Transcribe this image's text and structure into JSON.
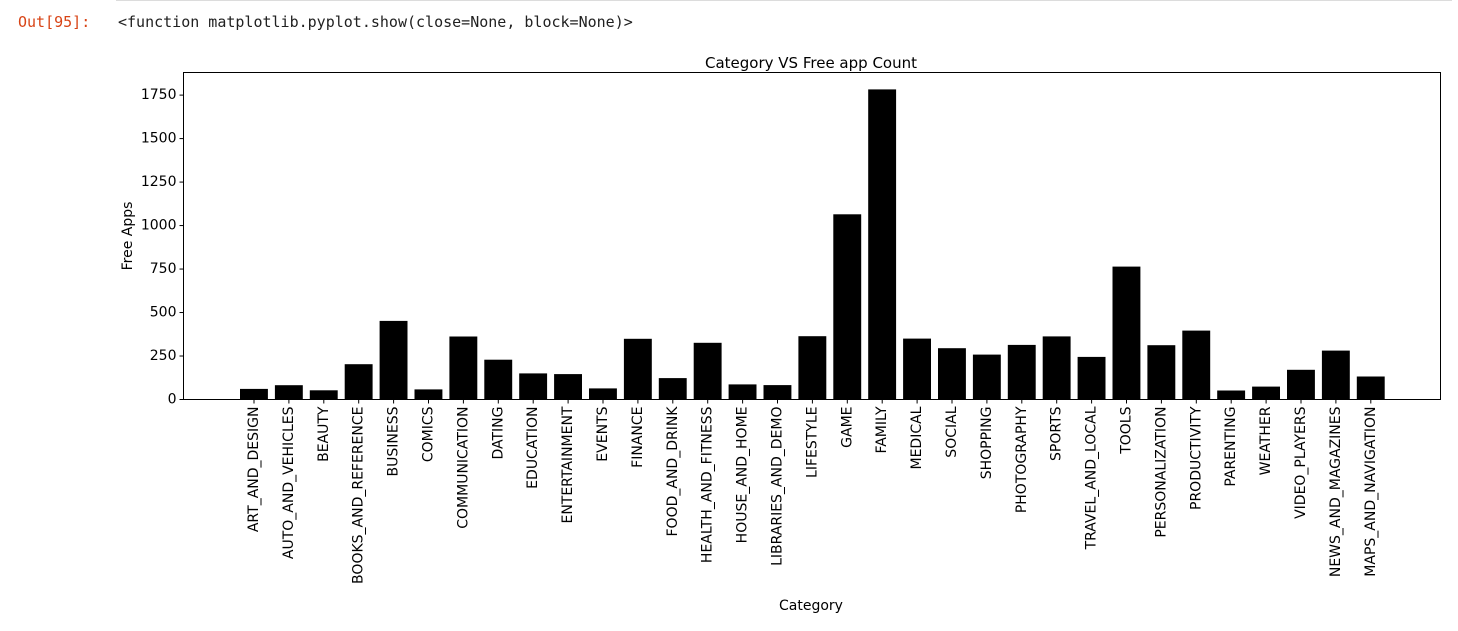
{
  "cell": {
    "prompt": "Out[95]:",
    "text": "<function matplotlib.pyplot.show(close=None, block=None)>"
  },
  "chart_data": {
    "type": "bar",
    "title": "Category VS Free app Count",
    "xlabel": "Category",
    "ylabel": "Free Apps",
    "ylim": [
      0,
      1880
    ],
    "yticks": [
      0,
      250,
      500,
      750,
      1000,
      1250,
      1500,
      1750
    ],
    "bar_color": "#000000",
    "grid": false,
    "categories": [
      "ART_AND_DESIGN",
      "AUTO_AND_VEHICLES",
      "BEAUTY",
      "BOOKS_AND_REFERENCE",
      "BUSINESS",
      "COMICS",
      "COMMUNICATION",
      "DATING",
      "EDUCATION",
      "ENTERTAINMENT",
      "EVENTS",
      "FINANCE",
      "FOOD_AND_DRINK",
      "HEALTH_AND_FITNESS",
      "HOUSE_AND_HOME",
      "LIBRARIES_AND_DEMO",
      "LIFESTYLE",
      "GAME",
      "FAMILY",
      "MEDICAL",
      "SOCIAL",
      "SHOPPING",
      "PHOTOGRAPHY",
      "SPORTS",
      "TRAVEL_AND_LOCAL",
      "TOOLS",
      "PERSONALIZATION",
      "PRODUCTIVITY",
      "PARENTING",
      "WEATHER",
      "VIDEO_PLAYERS",
      "NEWS_AND_MAGAZINES",
      "MAPS_AND_NAVIGATION"
    ],
    "values": [
      61,
      82,
      53,
      203,
      452,
      58,
      362,
      229,
      150,
      146,
      64,
      349,
      123,
      326,
      87,
      83,
      364,
      1065,
      1783,
      350,
      295,
      258,
      314,
      363,
      245,
      764,
      312,
      396,
      52,
      74,
      171,
      281,
      132
    ]
  }
}
